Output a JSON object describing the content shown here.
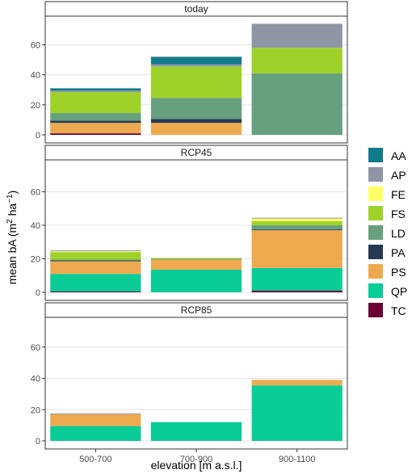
{
  "chart_data": {
    "type": "bar",
    "stacked": true,
    "facets": [
      "today",
      "RCP45",
      "RCP85"
    ],
    "categories": [
      "500-700",
      "700-900",
      "900-1100"
    ],
    "xlabel": "elevation [m a.s.l.]",
    "ylabel_parts": {
      "main": "mean bA (m",
      "sup1": "2",
      "mid": " ha",
      "sup2": "−1",
      "end": ")"
    },
    "ylim": [
      0,
      78
    ],
    "yticks": [
      0,
      20,
      40,
      60
    ],
    "grid": true,
    "legend_position": "right",
    "legend_order": [
      "AA",
      "AP",
      "FE",
      "FS",
      "LD",
      "PA",
      "PS",
      "QP",
      "TC"
    ],
    "stack_order_bottom_to_top": [
      "TC",
      "QP",
      "PS",
      "PA",
      "LD",
      "FS",
      "FE",
      "AP",
      "AA"
    ],
    "colors": {
      "AA": "#137a8b",
      "AP": "#8f96a3",
      "FE": "#ffff66",
      "FS": "#9ed22b",
      "LD": "#67a07e",
      "PA": "#253a52",
      "PS": "#eeaa4f",
      "QP": "#09cc96",
      "TC": "#6a0034"
    },
    "panels": [
      {
        "label": "today",
        "data": {
          "500-700": {
            "TC": 1.0,
            "QP": 0.0,
            "PS": 7.0,
            "PA": 1.5,
            "LD": 5.0,
            "FS": 14.0,
            "FE": 0.0,
            "AP": 1.0,
            "AA": 1.5
          },
          "700-900": {
            "TC": 0.0,
            "QP": 0.0,
            "PS": 8.0,
            "PA": 2.5,
            "LD": 14.0,
            "FS": 21.0,
            "FE": 0.0,
            "AP": 1.5,
            "AA": 5.0
          },
          "900-1100": {
            "TC": 0.0,
            "QP": 0.0,
            "PS": 0.0,
            "PA": 0.0,
            "LD": 41.0,
            "FS": 17.0,
            "FE": 0.0,
            "AP": 16.0,
            "AA": 0.0
          }
        }
      },
      {
        "label": "RCP45",
        "data": {
          "500-700": {
            "TC": 0.5,
            "QP": 10.5,
            "PS": 7.5,
            "PA": 0.5,
            "LD": 0.5,
            "FS": 4.5,
            "FE": 0.5,
            "AP": 0.5,
            "AA": 0.0
          },
          "700-900": {
            "TC": 0.0,
            "QP": 13.5,
            "PS": 6.0,
            "PA": 0.0,
            "LD": 0.5,
            "FS": 0.5,
            "FE": 0.0,
            "AP": 0.0,
            "AA": 0.0
          },
          "900-1100": {
            "TC": 1.0,
            "QP": 13.5,
            "PS": 22.5,
            "PA": 0.5,
            "LD": 2.5,
            "FS": 2.5,
            "FE": 1.5,
            "AP": 0.5,
            "AA": 0.0
          }
        }
      },
      {
        "label": "RCP85",
        "data": {
          "500-700": {
            "TC": 0.0,
            "QP": 9.5,
            "PS": 7.5,
            "PA": 0.0,
            "LD": 0.0,
            "FS": 0.0,
            "FE": 0.0,
            "AP": 0.5,
            "AA": 0.0
          },
          "700-900": {
            "TC": 0.0,
            "QP": 12.0,
            "PS": 0.0,
            "PA": 0.0,
            "LD": 0.0,
            "FS": 0.0,
            "FE": 0.0,
            "AP": 0.0,
            "AA": 0.0
          },
          "900-1100": {
            "TC": 0.0,
            "QP": 35.5,
            "PS": 3.5,
            "PA": 0.0,
            "LD": 0.0,
            "FS": 0.0,
            "FE": 0.0,
            "AP": 0.0,
            "AA": 0.0
          }
        }
      }
    ]
  }
}
